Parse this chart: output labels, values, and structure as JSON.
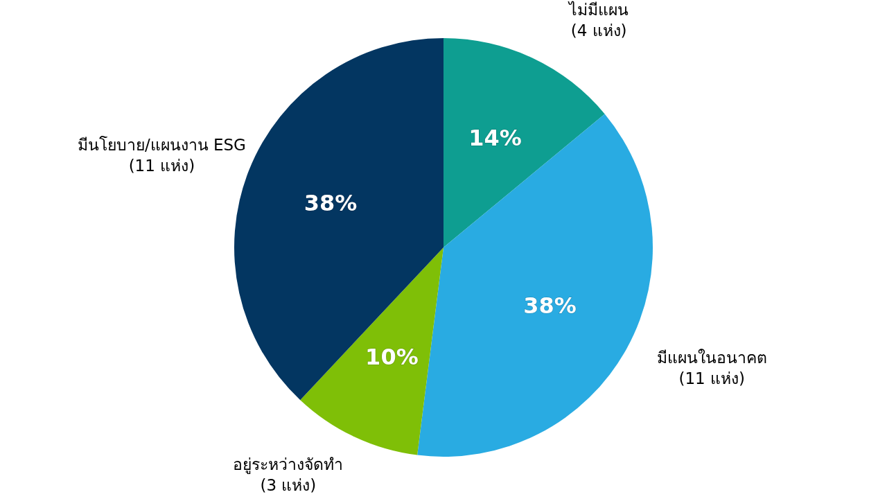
{
  "chart_data": {
    "type": "pie",
    "categories": [
      "ไม่มีแผน\n(4 แห่ง)",
      "มีแผนในอนาคต\n(11 แห่ง)",
      "อยู่ระหว่างจัดทำ\n(3 แห่ง)",
      "มีนโยบาย/แผนงาน ESG\n(11 แห่ง)"
    ],
    "values": [
      14,
      38,
      10,
      38
    ],
    "colors": [
      "#0e9e91",
      "#29abe2",
      "#7fbf07",
      "#033661"
    ],
    "value_labels": [
      "14%",
      "38%",
      "10%",
      "38%"
    ]
  }
}
